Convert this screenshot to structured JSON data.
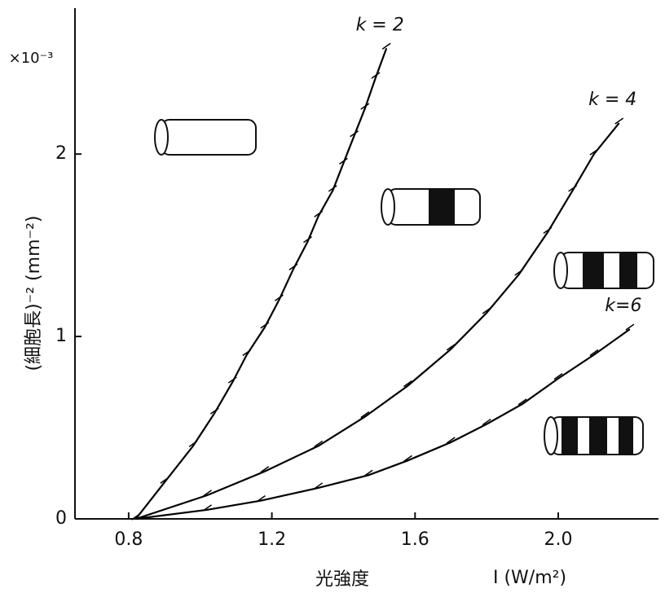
{
  "chart_data": {
    "type": "line",
    "ylabel": "(細胞長)⁻² (mm⁻²)",
    "y_multiplier": "×10⁻³",
    "xlabel": "光強度",
    "xlabel_symbol": "I (W/m²)",
    "xlim": [
      0.65,
      2.28
    ],
    "xticks": [
      0.8,
      1.2,
      1.6,
      {
        "value": 2,
        "label": "2.0"
      }
    ],
    "ylim": [
      0,
      2.8
    ],
    "yticks": [
      0,
      1,
      2
    ],
    "series": [
      {
        "name": "k = 2",
        "color": "#000000",
        "x": [
          0.82,
          0.9,
          0.98,
          1.04,
          1.09,
          1.13,
          1.18,
          1.22,
          1.26,
          1.3,
          1.33,
          1.37,
          1.4,
          1.43,
          1.46,
          1.49,
          1.52
        ],
        "values": [
          0,
          0.2,
          0.4,
          0.58,
          0.75,
          0.9,
          1.05,
          1.2,
          1.37,
          1.52,
          1.66,
          1.8,
          1.95,
          2.1,
          2.25,
          2.42,
          2.58
        ]
      },
      {
        "name": "k = 4",
        "color": "#000000",
        "x": [
          0.82,
          1.02,
          1.18,
          1.33,
          1.46,
          1.58,
          1.7,
          1.8,
          1.89,
          1.97,
          2.04,
          2.1,
          2.17
        ],
        "values": [
          0,
          0.13,
          0.26,
          0.4,
          0.56,
          0.73,
          0.93,
          1.13,
          1.34,
          1.57,
          1.8,
          2.0,
          2.17
        ]
      },
      {
        "name": "k=6",
        "color": "#000000",
        "x": [
          0.82,
          1.02,
          1.17,
          1.33,
          1.47,
          1.58,
          1.7,
          1.8,
          1.9,
          2.0,
          2.1,
          2.2
        ],
        "values": [
          0,
          0.05,
          0.1,
          0.17,
          0.24,
          0.32,
          0.42,
          0.52,
          0.63,
          0.77,
          0.9,
          1.04
        ]
      }
    ]
  }
}
